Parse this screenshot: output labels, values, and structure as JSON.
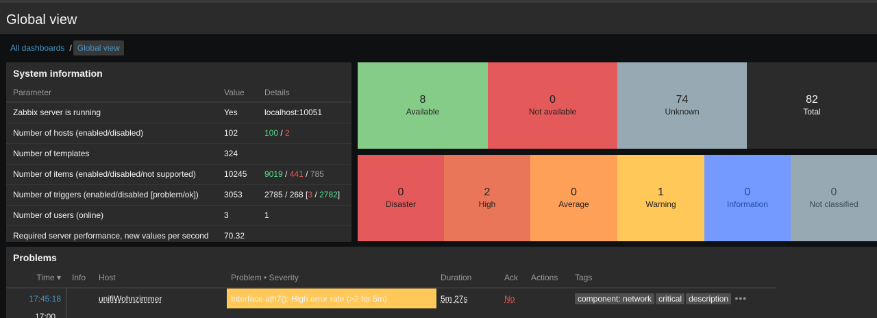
{
  "page": {
    "title": "Global view"
  },
  "breadcrumbs": {
    "root": "All dashboards",
    "separator": "/",
    "current": "Global view"
  },
  "system_info": {
    "title": "System information",
    "headers": [
      "Parameter",
      "Value",
      "Details"
    ],
    "rows": [
      {
        "param": "Zabbix server is running",
        "value": "Yes",
        "details": "localhost:10051"
      },
      {
        "param": "Number of hosts (enabled/disabled)",
        "value": "102",
        "d1": "100",
        "sep1": " / ",
        "d2": "2"
      },
      {
        "param": "Number of templates",
        "value": "324"
      },
      {
        "param": "Number of items (enabled/disabled/not supported)",
        "value": "10245",
        "d1": "9019",
        "sep1": " / ",
        "d2": "441",
        "sep2": " / ",
        "d3": "785"
      },
      {
        "param": "Number of triggers (enabled/disabled [problem/ok])",
        "value": "3053",
        "d0": "2785 / 268 [",
        "d1": "3",
        "sep1": " / ",
        "d2": "2782",
        "d3": "]"
      },
      {
        "param": "Number of users (online)",
        "value": "3",
        "details": "1"
      },
      {
        "param": "Required server performance, new values per second",
        "value": "70.32"
      }
    ]
  },
  "host_availability": [
    {
      "count": "8",
      "label": "Available",
      "color": "#86cc89"
    },
    {
      "count": "0",
      "label": "Not available",
      "color": "#e45959"
    },
    {
      "count": "74",
      "label": "Unknown",
      "color": "#97aab3"
    },
    {
      "count": "82",
      "label": "Total",
      "color": "#2b2b2b"
    }
  ],
  "problems_by_severity": [
    {
      "count": "0",
      "label": "Disaster",
      "color": "#e45959"
    },
    {
      "count": "2",
      "label": "High",
      "color": "#e97659"
    },
    {
      "count": "0",
      "label": "Average",
      "color": "#ffa059"
    },
    {
      "count": "1",
      "label": "Warning",
      "color": "#ffc859"
    },
    {
      "count": "0",
      "label": "Information",
      "color": "#7499ff"
    },
    {
      "count": "0",
      "label": "Not classified",
      "color": "#97aab3"
    }
  ],
  "problems": {
    "title": "Problems",
    "headers": {
      "time": "Time ▾",
      "info": "Info",
      "host": "Host",
      "problem": "Problem • Severity",
      "duration": "Duration",
      "ack": "Ack",
      "actions": "Actions",
      "tags": "Tags"
    },
    "rows": [
      {
        "time": "17:45:18",
        "host": "unifiWohnzimmer",
        "problem": "Interface ath7(): High error rate (>2 for 5m)",
        "duration": "5m 27s",
        "ack": "No",
        "tags": [
          "component: network",
          "critical",
          "description"
        ],
        "more": "•••"
      }
    ],
    "next_time": "17:00"
  }
}
